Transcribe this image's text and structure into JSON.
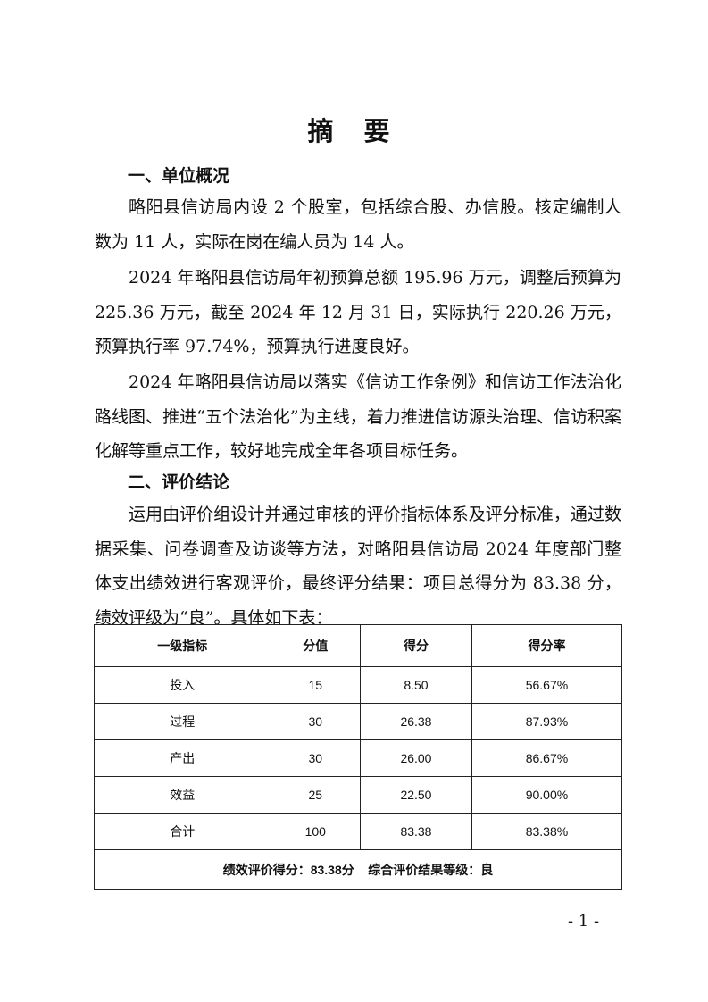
{
  "title": "摘 要",
  "section1": {
    "heading": "一、单位概况",
    "paragraphs": [
      "略阳县信访局内设 2 个股室，包括综合股、办信股。核定编制人数为 11 人，实际在岗在编人员为 14 人。",
      "2024 年略阳县信访局年初预算总额 195.96 万元，调整后预算为 225.36 万元，截至 2024 年 12 月 31 日，实际执行 220.26 万元，预算执行率 97.74%，预算执行进度良好。",
      "2024 年略阳县信访局以落实《信访工作条例》和信访工作法治化路线图、推进“五个法治化”为主线，着力推进信访源头治理、信访积案化解等重点工作，较好地完成全年各项目标任务。"
    ]
  },
  "section2": {
    "heading": "二、评价结论",
    "paragraph": "运用由评价组设计并通过审核的评价指标体系及评分标准，通过数据采集、问卷调查及访谈等方法，对略阳县信访局 2024 年度部门整体支出绩效进行客观评价，最终评分结果：项目总得分为 83.38 分，绩效评级为“良”。具体如下表："
  },
  "table": {
    "headers": [
      "一级指标",
      "分值",
      "得分",
      "得分率"
    ],
    "rows": [
      [
        "投入",
        "15",
        "8.50",
        "56.67%"
      ],
      [
        "过程",
        "30",
        "26.38",
        "87.93%"
      ],
      [
        "产出",
        "30",
        "26.00",
        "86.67%"
      ],
      [
        "效益",
        "25",
        "22.50",
        "90.00%"
      ],
      [
        "合计",
        "100",
        "83.38",
        "83.38%"
      ]
    ],
    "footer": "绩效评价得分：83.38分    综合评价结果等级：良"
  },
  "page_number": "- 1 -"
}
